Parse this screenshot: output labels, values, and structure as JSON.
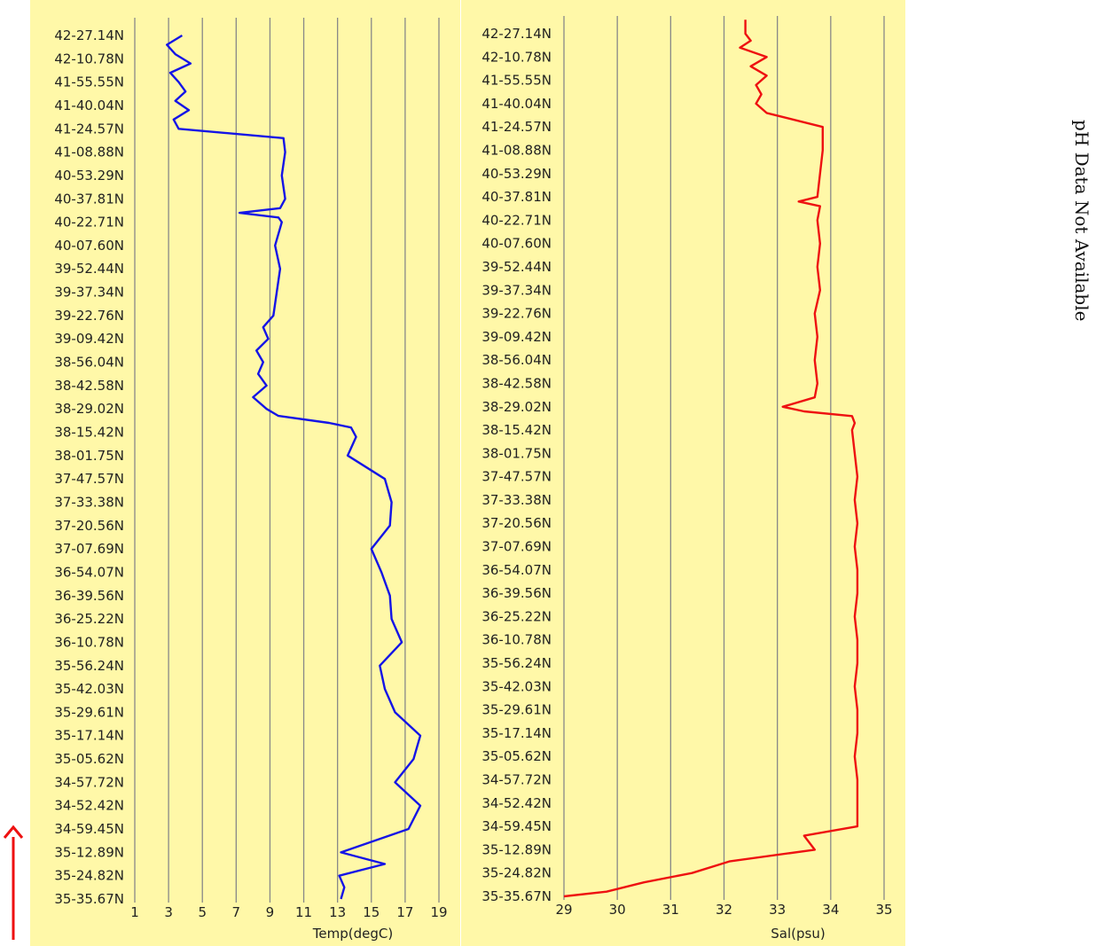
{
  "side_note": "pH Data Not Available",
  "colors": {
    "panel_bg": "#fff8a8",
    "grid": "#888888",
    "temp_line": "#1414e6",
    "sal_line": "#ee1111",
    "arrow": "#ee1111"
  },
  "latitude_labels": [
    "42-27.14N",
    "42-10.78N",
    "41-55.55N",
    "41-40.04N",
    "41-24.57N",
    "41-08.88N",
    "40-53.29N",
    "40-37.81N",
    "40-22.71N",
    "40-07.60N",
    "39-52.44N",
    "39-37.34N",
    "39-22.76N",
    "39-09.42N",
    "38-56.04N",
    "38-42.58N",
    "38-29.02N",
    "38-15.42N",
    "38-01.75N",
    "37-47.57N",
    "37-33.38N",
    "37-20.56N",
    "37-07.69N",
    "36-54.07N",
    "36-39.56N",
    "36-25.22N",
    "36-10.78N",
    "35-56.24N",
    "35-42.03N",
    "35-29.61N",
    "35-17.14N",
    "35-05.62N",
    "34-57.72N",
    "34-52.42N",
    "34-59.45N",
    "35-12.89N",
    "35-24.82N",
    "35-35.67N"
  ],
  "chart_data": [
    {
      "type": "line",
      "xlabel": "Temp(degC)",
      "ylabel": "",
      "xlim": [
        1,
        19
      ],
      "xticks": [
        "1",
        "3",
        "5",
        "7",
        "9",
        "11",
        "13",
        "15",
        "17",
        "19"
      ],
      "categories_note": "",
      "series": [
        {
          "y_index": [
            0,
            0.4,
            0.8,
            1.2,
            1.6,
            2.0,
            2.4,
            2.8,
            3.2,
            3.6,
            4.0,
            4.4,
            5,
            6,
            7,
            7.4,
            7.6,
            7.8,
            8,
            9,
            10,
            11,
            12,
            12.5,
            13,
            13.5,
            14,
            14.5,
            15,
            15.5,
            16,
            16.3,
            16.6,
            16.8,
            17.2,
            18,
            19,
            20,
            21,
            22,
            23,
            24,
            25,
            26,
            27,
            28,
            29,
            30,
            31,
            32,
            33,
            34,
            35,
            35.5,
            36,
            36.5,
            37
          ],
          "values": [
            3.8,
            2.9,
            3.4,
            4.3,
            3.1,
            3.6,
            4.0,
            3.4,
            4.2,
            3.3,
            3.6,
            9.8,
            9.9,
            9.7,
            9.9,
            9.6,
            7.2,
            9.5,
            9.7,
            9.3,
            9.6,
            9.4,
            9.2,
            8.6,
            8.9,
            8.2,
            8.6,
            8.3,
            8.8,
            8.0,
            8.8,
            9.5,
            12.5,
            13.8,
            14.1,
            13.6,
            15.8,
            16.2,
            16.1,
            15.0,
            15.6,
            16.1,
            16.2,
            16.8,
            15.5,
            15.8,
            16.4,
            17.9,
            17.5,
            16.4,
            17.9,
            17.2,
            13.2,
            15.8,
            13.1,
            13.4,
            13.2
          ]
        }
      ]
    },
    {
      "type": "line",
      "xlabel": "Sal(psu)",
      "ylabel": "",
      "xlim": [
        29,
        35
      ],
      "xticks": [
        "29",
        "30",
        "31",
        "32",
        "33",
        "34",
        "35"
      ],
      "series": [
        {
          "y_index": [
            -0.6,
            0,
            0.3,
            0.6,
            1.0,
            1.4,
            1.8,
            2.2,
            2.6,
            3.0,
            3.4,
            4,
            5,
            6,
            7,
            7.2,
            7.4,
            8,
            9,
            10,
            11,
            12,
            13,
            14,
            15,
            15.6,
            16,
            16.2,
            16.4,
            16.7,
            17,
            18,
            19,
            20,
            21,
            22,
            23,
            24,
            25,
            26,
            27,
            28,
            29,
            30,
            31,
            32,
            33,
            34,
            34.4,
            35,
            35.5,
            36,
            36.4,
            36.8,
            37
          ],
          "values": [
            32.4,
            32.4,
            32.5,
            32.3,
            32.8,
            32.5,
            32.8,
            32.6,
            32.7,
            32.6,
            32.8,
            33.85,
            33.85,
            33.8,
            33.75,
            33.4,
            33.8,
            33.75,
            33.8,
            33.75,
            33.8,
            33.7,
            33.75,
            33.7,
            33.75,
            33.7,
            33.1,
            33.5,
            34.4,
            34.45,
            34.4,
            34.45,
            34.5,
            34.45,
            34.5,
            34.45,
            34.5,
            34.5,
            34.45,
            34.5,
            34.5,
            34.45,
            34.5,
            34.5,
            34.45,
            34.5,
            34.5,
            34.5,
            33.5,
            33.7,
            32.1,
            31.4,
            30.5,
            29.8,
            29.0
          ]
        }
      ]
    }
  ]
}
